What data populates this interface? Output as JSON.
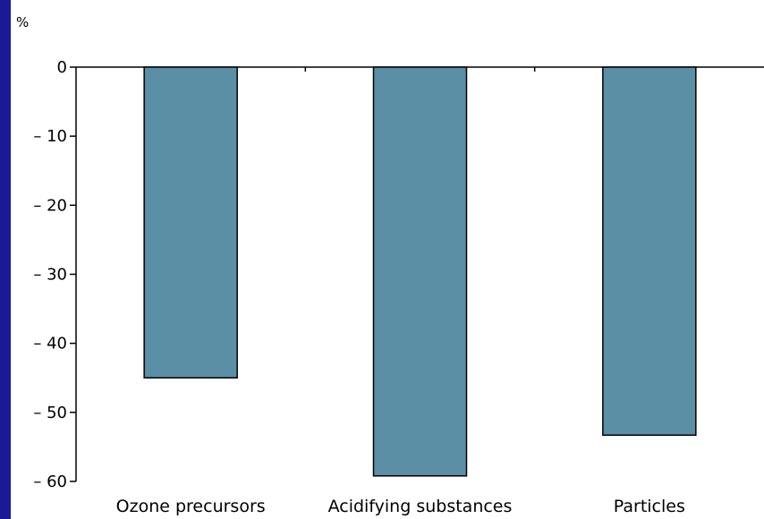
{
  "chart_data": {
    "type": "bar",
    "ylabel": "%",
    "categories": [
      "Ozone precursors",
      "Acidifying substances",
      "Particles"
    ],
    "values": [
      -45,
      -59.2,
      -53.3
    ],
    "ylim": [
      -60,
      0
    ],
    "yticks": [
      0,
      -10,
      -20,
      -30,
      -40,
      -50,
      -60
    ],
    "ytick_labels": [
      "0",
      "– 10",
      "– 20",
      "– 30",
      "– 40",
      "– 50",
      "– 60"
    ],
    "bar_color": "#5a8fa5",
    "bar_edge_color": "#000000",
    "grid": false,
    "legend": false
  }
}
